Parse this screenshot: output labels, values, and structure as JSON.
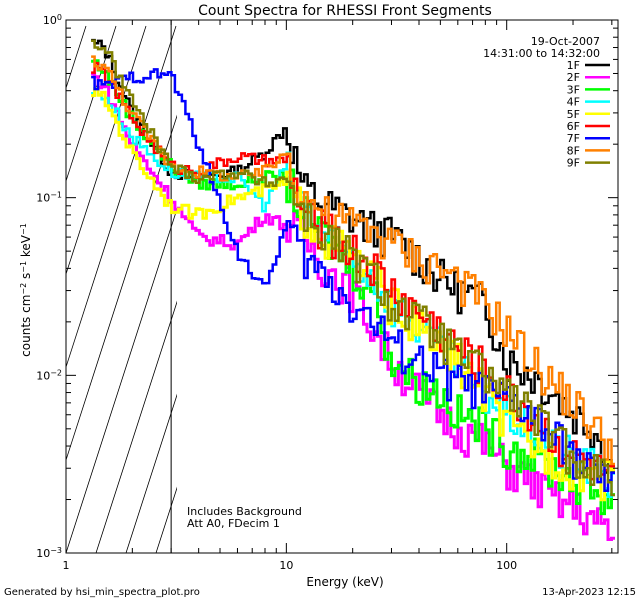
{
  "chart_data": {
    "type": "line",
    "title": "Count Spectra for RHESSI Front Segments",
    "xlabel": "Energy (keV)",
    "ylabel": {
      "base": "counts cm",
      "exp1": "−2",
      "mid1": " s",
      "exp2": "−1",
      "mid2": " keV",
      "exp3": "−1"
    },
    "xscale": "log",
    "yscale": "log",
    "xlim": [
      1,
      320
    ],
    "ylim": [
      0.001,
      1
    ],
    "x_ticks": [
      {
        "value": 1,
        "label": "1"
      },
      {
        "value": 10,
        "label": "10"
      },
      {
        "value": 100,
        "label": "100"
      }
    ],
    "y_ticks": [
      {
        "value": 1,
        "base": "10",
        "exp": "0"
      },
      {
        "value": 0.1,
        "base": "10",
        "exp": "−1"
      },
      {
        "value": 0.01,
        "base": "10",
        "exp": "−2"
      },
      {
        "value": 0.001,
        "base": "10",
        "exp": "−3"
      }
    ],
    "hatched_region": {
      "x_from": 1,
      "x_to": 3
    },
    "header": {
      "date": "19-Oct-2007",
      "time_range": "14:31:00 to 14:32:00"
    },
    "legend_position": "top-right",
    "series": [
      {
        "name": "1F",
        "color": "#000000",
        "x": [
          1.3,
          1.5,
          2,
          3,
          4,
          6,
          8,
          10,
          12,
          15,
          20,
          25,
          30,
          40,
          50,
          60,
          80,
          100,
          130,
          160,
          200,
          250,
          300
        ],
        "y": [
          0.75,
          0.7,
          0.3,
          0.14,
          0.13,
          0.14,
          0.18,
          0.25,
          0.11,
          0.09,
          0.075,
          0.065,
          0.06,
          0.045,
          0.035,
          0.03,
          0.025,
          0.012,
          0.01,
          0.008,
          0.006,
          0.005,
          0.003
        ]
      },
      {
        "name": "2F",
        "color": "#ff00ff",
        "x": [
          1.3,
          1.5,
          2,
          3,
          4,
          6,
          8,
          10,
          12,
          15,
          20,
          25,
          30,
          40,
          50,
          60,
          80,
          100,
          130,
          160,
          200,
          250,
          300
        ],
        "y": [
          0.5,
          0.42,
          0.2,
          0.1,
          0.06,
          0.055,
          0.08,
          0.07,
          0.06,
          0.04,
          0.03,
          0.018,
          0.012,
          0.008,
          0.006,
          0.005,
          0.004,
          0.003,
          0.0025,
          0.002,
          0.0018,
          0.0015,
          0.0012
        ]
      },
      {
        "name": "3F",
        "color": "#00ff00",
        "x": [
          1.3,
          1.5,
          2,
          3,
          4,
          6,
          8,
          10,
          12,
          15,
          20,
          25,
          30,
          40,
          50,
          60,
          80,
          100,
          130,
          160,
          200,
          250,
          300
        ],
        "y": [
          0.6,
          0.52,
          0.28,
          0.15,
          0.12,
          0.12,
          0.13,
          0.13,
          0.08,
          0.06,
          0.04,
          0.03,
          0.012,
          0.009,
          0.008,
          0.006,
          0.005,
          0.004,
          0.0035,
          0.003,
          0.0025,
          0.0022,
          0.002
        ]
      },
      {
        "name": "4F",
        "color": "#00ffff",
        "x": [
          1.3,
          1.5,
          2,
          3,
          4,
          6,
          8,
          10,
          12,
          15,
          20,
          25,
          30,
          40,
          50,
          60,
          80,
          100,
          130,
          160,
          200,
          250,
          300
        ],
        "y": [
          0.4,
          0.38,
          0.22,
          0.14,
          0.13,
          0.13,
          0.09,
          0.15,
          0.09,
          0.06,
          0.045,
          0.035,
          0.025,
          0.018,
          0.014,
          0.011,
          0.008,
          0.006,
          0.005,
          0.004,
          0.0035,
          0.003,
          0.0025
        ]
      },
      {
        "name": "5F",
        "color": "#ffff00",
        "x": [
          1.3,
          1.5,
          2,
          3,
          4,
          6,
          8,
          10,
          12,
          15,
          20,
          25,
          30,
          40,
          50,
          60,
          80,
          100,
          130,
          160,
          200,
          250,
          300
        ],
        "y": [
          0.4,
          0.36,
          0.18,
          0.09,
          0.08,
          0.1,
          0.11,
          0.12,
          0.08,
          0.06,
          0.045,
          0.035,
          0.025,
          0.018,
          0.014,
          0.012,
          0.008,
          0.005,
          0.004,
          0.0035,
          0.003,
          0.0028,
          0.0025
        ]
      },
      {
        "name": "6F",
        "color": "#ff0000",
        "x": [
          1.3,
          1.5,
          2,
          3,
          4,
          6,
          8,
          10,
          12,
          15,
          20,
          25,
          30,
          40,
          50,
          60,
          80,
          100,
          130,
          160,
          200,
          250,
          300
        ],
        "y": [
          0.55,
          0.5,
          0.28,
          0.15,
          0.14,
          0.17,
          0.16,
          0.16,
          0.08,
          0.065,
          0.05,
          0.04,
          0.03,
          0.022,
          0.018,
          0.014,
          0.011,
          0.008,
          0.006,
          0.0045,
          0.0035,
          0.003,
          0.0025
        ]
      },
      {
        "name": "7F",
        "color": "#0000ff",
        "x": [
          1.3,
          1.5,
          2,
          3,
          4,
          6,
          8,
          10,
          12,
          15,
          20,
          25,
          30,
          40,
          50,
          60,
          80,
          100,
          130,
          160,
          200,
          250,
          300
        ],
        "y": [
          0.45,
          0.42,
          0.48,
          0.5,
          0.2,
          0.05,
          0.03,
          0.07,
          0.045,
          0.035,
          0.025,
          0.02,
          0.015,
          0.012,
          0.01,
          0.009,
          0.008,
          0.007,
          0.006,
          0.0045,
          0.0035,
          0.0028,
          0.0022
        ]
      },
      {
        "name": "8F",
        "color": "#ff8000",
        "x": [
          1.3,
          1.5,
          2,
          3,
          4,
          6,
          8,
          10,
          12,
          15,
          20,
          25,
          30,
          40,
          50,
          60,
          80,
          100,
          130,
          160,
          200,
          250,
          300
        ],
        "y": [
          0.6,
          0.55,
          0.3,
          0.15,
          0.14,
          0.13,
          0.14,
          0.18,
          0.1,
          0.08,
          0.07,
          0.065,
          0.055,
          0.045,
          0.04,
          0.035,
          0.025,
          0.018,
          0.012,
          0.009,
          0.007,
          0.005,
          0.004
        ]
      },
      {
        "name": "9F",
        "color": "#808000",
        "x": [
          1.3,
          1.5,
          2,
          3,
          4,
          6,
          8,
          10,
          12,
          15,
          20,
          25,
          30,
          40,
          50,
          60,
          80,
          100,
          130,
          160,
          200,
          250,
          300
        ],
        "y": [
          0.75,
          0.7,
          0.35,
          0.15,
          0.13,
          0.14,
          0.12,
          0.13,
          0.08,
          0.06,
          0.045,
          0.035,
          0.025,
          0.02,
          0.016,
          0.013,
          0.01,
          0.008,
          0.006,
          0.0045,
          0.0035,
          0.003,
          0.0025
        ]
      }
    ],
    "annotations": [
      "Includes Background",
      "Att A0, FDecim 1"
    ]
  },
  "footer": {
    "generator": "Generated by hsi_min_spectra_plot.pro",
    "timestamp": "13-Apr-2023 12:15"
  }
}
